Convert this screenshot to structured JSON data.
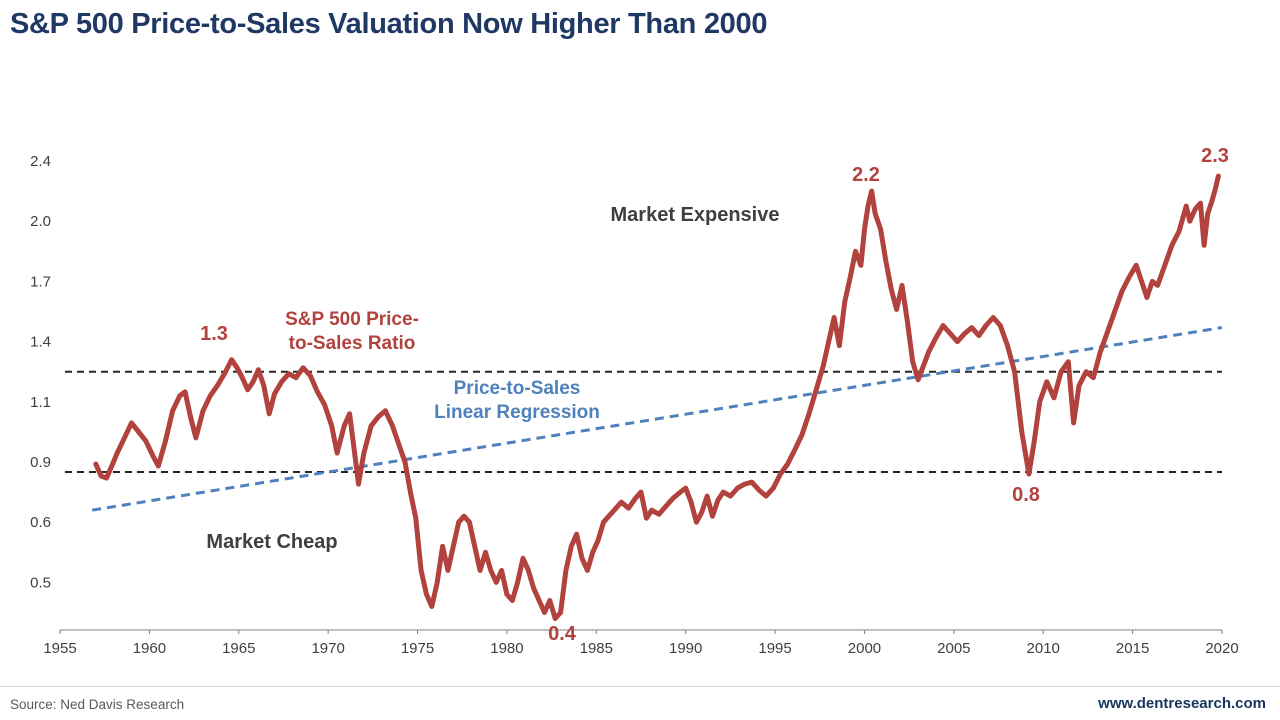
{
  "header": {
    "title": "S&P 500 Price-to-Sales Valuation Now Higher Than 2000"
  },
  "footer": {
    "source": "Source: Ned Davis Research",
    "website": "www.dentresearch.com"
  },
  "colors": {
    "title": "#1f3864",
    "series": "#b2423e",
    "regression": "#4f81bd",
    "reference": "#262626",
    "axis_text": "#404040"
  },
  "chart_data": {
    "type": "line",
    "title": "S&P 500 Price-to-Sales Valuation Now Higher Than 2000",
    "x_axis": {
      "ticks": [
        "1955",
        "1960",
        "1965",
        "1970",
        "1975",
        "1980",
        "1985",
        "1990",
        "1995",
        "2000",
        "2005",
        "2010",
        "2015",
        "2020"
      ],
      "range": [
        1955,
        2020
      ]
    },
    "y_axis": {
      "ticks": [
        "2.4",
        "2.0",
        "1.7",
        "1.4",
        "1.1",
        "0.9",
        "0.6",
        "0.5"
      ],
      "note": "tick labels equally spaced (non-linear scale)"
    },
    "reference_lines": [
      1.25,
      0.85
    ],
    "regression": {
      "name": "Price-to-Sales Linear Regression",
      "color": "#4f81bd",
      "start": {
        "x": 1956.8,
        "y": 0.66
      },
      "end": {
        "x": 2020.0,
        "y": 1.47
      }
    },
    "series": [
      {
        "name": "S&P 500 Price-to-Sales Ratio",
        "color": "#b2423e",
        "points": [
          [
            1957.0,
            0.89
          ],
          [
            1957.3,
            0.83
          ],
          [
            1957.6,
            0.82
          ],
          [
            1957.9,
            0.88
          ],
          [
            1958.2,
            0.93
          ],
          [
            1958.6,
            0.98
          ],
          [
            1959.0,
            1.03
          ],
          [
            1959.4,
            1.0
          ],
          [
            1959.8,
            0.97
          ],
          [
            1960.2,
            0.92
          ],
          [
            1960.5,
            0.88
          ],
          [
            1960.9,
            0.97
          ],
          [
            1961.3,
            1.07
          ],
          [
            1961.7,
            1.13
          ],
          [
            1962.0,
            1.15
          ],
          [
            1962.3,
            1.05
          ],
          [
            1962.6,
            0.98
          ],
          [
            1963.0,
            1.07
          ],
          [
            1963.4,
            1.13
          ],
          [
            1963.8,
            1.18
          ],
          [
            1964.2,
            1.24
          ],
          [
            1964.6,
            1.31
          ],
          [
            1964.9,
            1.27
          ],
          [
            1965.2,
            1.22
          ],
          [
            1965.5,
            1.16
          ],
          [
            1965.8,
            1.2
          ],
          [
            1966.1,
            1.26
          ],
          [
            1966.4,
            1.18
          ],
          [
            1966.7,
            1.06
          ],
          [
            1967.0,
            1.14
          ],
          [
            1967.4,
            1.2
          ],
          [
            1967.8,
            1.24
          ],
          [
            1968.2,
            1.22
          ],
          [
            1968.6,
            1.27
          ],
          [
            1969.0,
            1.23
          ],
          [
            1969.4,
            1.15
          ],
          [
            1969.8,
            1.09
          ],
          [
            1970.2,
            1.02
          ],
          [
            1970.5,
            0.93
          ],
          [
            1970.9,
            1.02
          ],
          [
            1971.2,
            1.06
          ],
          [
            1971.5,
            0.92
          ],
          [
            1971.7,
            0.79
          ],
          [
            1972.0,
            0.93
          ],
          [
            1972.4,
            1.02
          ],
          [
            1972.8,
            1.05
          ],
          [
            1973.2,
            1.07
          ],
          [
            1973.6,
            1.02
          ],
          [
            1974.0,
            0.95
          ],
          [
            1974.3,
            0.9
          ],
          [
            1974.6,
            0.75
          ],
          [
            1974.9,
            0.62
          ],
          [
            1975.2,
            0.52
          ],
          [
            1975.5,
            0.48
          ],
          [
            1975.8,
            0.46
          ],
          [
            1976.1,
            0.5
          ],
          [
            1976.4,
            0.56
          ],
          [
            1976.7,
            0.52
          ],
          [
            1977.0,
            0.56
          ],
          [
            1977.3,
            0.6
          ],
          [
            1977.6,
            0.63
          ],
          [
            1977.9,
            0.6
          ],
          [
            1978.2,
            0.56
          ],
          [
            1978.5,
            0.52
          ],
          [
            1978.8,
            0.55
          ],
          [
            1979.1,
            0.52
          ],
          [
            1979.4,
            0.5
          ],
          [
            1979.7,
            0.52
          ],
          [
            1980.0,
            0.48
          ],
          [
            1980.3,
            0.47
          ],
          [
            1980.6,
            0.5
          ],
          [
            1980.9,
            0.54
          ],
          [
            1981.2,
            0.52
          ],
          [
            1981.5,
            0.49
          ],
          [
            1981.8,
            0.47
          ],
          [
            1982.1,
            0.45
          ],
          [
            1982.4,
            0.47
          ],
          [
            1982.7,
            0.44
          ],
          [
            1983.0,
            0.45
          ],
          [
            1983.3,
            0.52
          ],
          [
            1983.6,
            0.56
          ],
          [
            1983.9,
            0.58
          ],
          [
            1984.2,
            0.54
          ],
          [
            1984.5,
            0.52
          ],
          [
            1984.8,
            0.55
          ],
          [
            1985.1,
            0.57
          ],
          [
            1985.4,
            0.6
          ],
          [
            1985.7,
            0.63
          ],
          [
            1986.0,
            0.66
          ],
          [
            1986.4,
            0.7
          ],
          [
            1986.8,
            0.67
          ],
          [
            1987.2,
            0.72
          ],
          [
            1987.5,
            0.75
          ],
          [
            1987.8,
            0.62
          ],
          [
            1988.1,
            0.66
          ],
          [
            1988.5,
            0.64
          ],
          [
            1988.9,
            0.68
          ],
          [
            1989.3,
            0.72
          ],
          [
            1989.7,
            0.75
          ],
          [
            1990.0,
            0.77
          ],
          [
            1990.3,
            0.7
          ],
          [
            1990.6,
            0.6
          ],
          [
            1990.9,
            0.65
          ],
          [
            1991.2,
            0.73
          ],
          [
            1991.5,
            0.63
          ],
          [
            1991.8,
            0.71
          ],
          [
            1992.1,
            0.75
          ],
          [
            1992.5,
            0.73
          ],
          [
            1992.9,
            0.77
          ],
          [
            1993.3,
            0.79
          ],
          [
            1993.7,
            0.8
          ],
          [
            1994.1,
            0.76
          ],
          [
            1994.5,
            0.73
          ],
          [
            1994.9,
            0.77
          ],
          [
            1995.3,
            0.84
          ],
          [
            1995.7,
            0.89
          ],
          [
            1996.1,
            0.94
          ],
          [
            1996.5,
            0.99
          ],
          [
            1996.9,
            1.06
          ],
          [
            1997.3,
            1.16
          ],
          [
            1997.7,
            1.28
          ],
          [
            1998.0,
            1.4
          ],
          [
            1998.3,
            1.52
          ],
          [
            1998.6,
            1.38
          ],
          [
            1998.9,
            1.6
          ],
          [
            1999.2,
            1.72
          ],
          [
            1999.5,
            1.85
          ],
          [
            1999.8,
            1.78
          ],
          [
            2000.0,
            1.96
          ],
          [
            2000.2,
            2.1
          ],
          [
            2000.4,
            2.2
          ],
          [
            2000.6,
            2.05
          ],
          [
            2000.9,
            1.96
          ],
          [
            2001.2,
            1.8
          ],
          [
            2001.5,
            1.66
          ],
          [
            2001.8,
            1.56
          ],
          [
            2002.1,
            1.68
          ],
          [
            2002.4,
            1.5
          ],
          [
            2002.7,
            1.3
          ],
          [
            2003.0,
            1.21
          ],
          [
            2003.3,
            1.28
          ],
          [
            2003.6,
            1.35
          ],
          [
            2004.0,
            1.42
          ],
          [
            2004.4,
            1.48
          ],
          [
            2004.8,
            1.44
          ],
          [
            2005.2,
            1.4
          ],
          [
            2005.6,
            1.44
          ],
          [
            2006.0,
            1.47
          ],
          [
            2006.4,
            1.43
          ],
          [
            2006.8,
            1.48
          ],
          [
            2007.2,
            1.52
          ],
          [
            2007.6,
            1.48
          ],
          [
            2008.0,
            1.38
          ],
          [
            2008.4,
            1.25
          ],
          [
            2008.8,
            1.0
          ],
          [
            2009.2,
            0.84
          ],
          [
            2009.5,
            0.97
          ],
          [
            2009.8,
            1.1
          ],
          [
            2010.2,
            1.2
          ],
          [
            2010.6,
            1.12
          ],
          [
            2011.0,
            1.25
          ],
          [
            2011.4,
            1.3
          ],
          [
            2011.7,
            1.03
          ],
          [
            2012.0,
            1.18
          ],
          [
            2012.4,
            1.25
          ],
          [
            2012.8,
            1.22
          ],
          [
            2013.2,
            1.35
          ],
          [
            2013.6,
            1.45
          ],
          [
            2014.0,
            1.55
          ],
          [
            2014.4,
            1.65
          ],
          [
            2014.8,
            1.72
          ],
          [
            2015.2,
            1.78
          ],
          [
            2015.5,
            1.7
          ],
          [
            2015.8,
            1.62
          ],
          [
            2016.1,
            1.7
          ],
          [
            2016.4,
            1.68
          ],
          [
            2016.8,
            1.78
          ],
          [
            2017.2,
            1.88
          ],
          [
            2017.6,
            1.95
          ],
          [
            2018.0,
            2.1
          ],
          [
            2018.2,
            2.0
          ],
          [
            2018.5,
            2.08
          ],
          [
            2018.8,
            2.12
          ],
          [
            2019.0,
            1.88
          ],
          [
            2019.2,
            2.05
          ],
          [
            2019.4,
            2.12
          ],
          [
            2019.6,
            2.2
          ],
          [
            2019.8,
            2.3
          ]
        ]
      }
    ],
    "annotations": {
      "peak_1965": "1.3",
      "peak_2000": "2.2",
      "peak_2019": "2.3",
      "low_2009": "0.8",
      "low_1982": "0.4",
      "market_expensive": "Market Expensive",
      "market_cheap": "Market Cheap",
      "series_label": "S&P 500 Price-\nto-Sales Ratio",
      "regression_label": "Price-to-Sales\nLinear Regression"
    }
  }
}
